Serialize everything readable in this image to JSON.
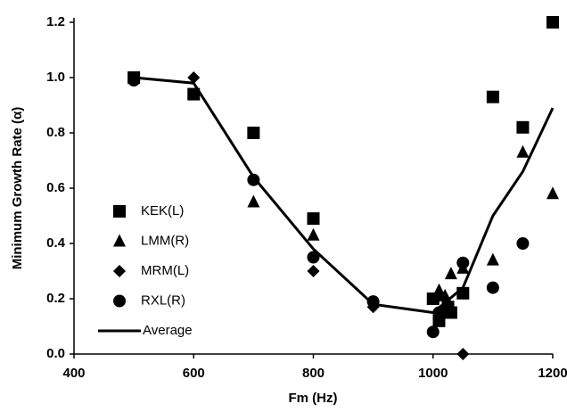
{
  "chart_data": {
    "type": "scatter",
    "xlabel": "Fm (Hz)",
    "ylabel": "Minimum Growth Rate (α)",
    "xlim": [
      400,
      1200
    ],
    "ylim": [
      0,
      1.2
    ],
    "xticks": [
      400,
      600,
      800,
      1000,
      1200
    ],
    "yticks": [
      {
        "value": 0,
        "label": "0.0"
      },
      0.2,
      0.4,
      0.6,
      0.8,
      {
        "value": 1,
        "label": "1.0"
      },
      1.2
    ],
    "series": [
      {
        "name": "KEK(L)",
        "marker": "square",
        "color": "#000000",
        "x": [
          500,
          600,
          700,
          800,
          1000,
          1010,
          1025,
          1030,
          1050,
          1100,
          1150,
          1200
        ],
        "values": [
          1.0,
          0.94,
          0.8,
          0.49,
          0.2,
          0.12,
          0.17,
          0.15,
          0.22,
          0.93,
          0.82,
          1.2
        ]
      },
      {
        "name": "LMM(R)",
        "marker": "triangle",
        "color": "#000000",
        "x": [
          700,
          800,
          1010,
          1020,
          1030,
          1050,
          1100,
          1150,
          1200
        ],
        "values": [
          0.55,
          0.43,
          0.23,
          0.21,
          0.29,
          0.31,
          0.34,
          0.73,
          0.58
        ]
      },
      {
        "name": "MRM(L)",
        "marker": "diamond",
        "color": "#000000",
        "x": [
          600,
          800,
          900,
          1010,
          1050
        ],
        "values": [
          1.0,
          0.3,
          0.17,
          0.21,
          0.0
        ]
      },
      {
        "name": "RXL(R)",
        "marker": "circle",
        "color": "#000000",
        "x": [
          500,
          700,
          800,
          900,
          1000,
          1010,
          1050,
          1100,
          1150
        ],
        "values": [
          0.99,
          0.63,
          0.35,
          0.19,
          0.08,
          0.15,
          0.33,
          0.24,
          0.4
        ]
      },
      {
        "name": "Average",
        "marker": "line",
        "color": "#000000",
        "x": [
          500,
          600,
          700,
          800,
          900,
          1000,
          1050,
          1100,
          1150,
          1200
        ],
        "values": [
          1.0,
          0.98,
          0.64,
          0.38,
          0.18,
          0.15,
          0.24,
          0.5,
          0.66,
          0.89
        ]
      }
    ]
  }
}
